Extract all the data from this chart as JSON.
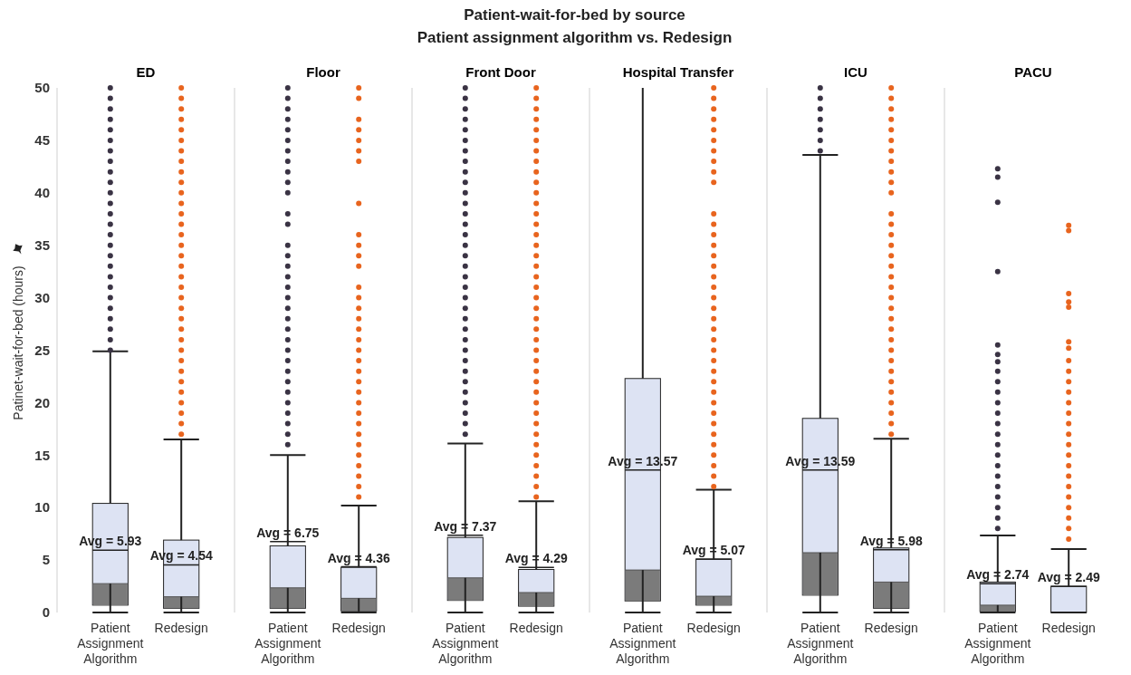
{
  "chart_data": [
    {
      "type": "box",
      "title": "ED",
      "ylabel": "Patinet-wait-for-bed (hours)",
      "annotations": [
        "Patient-wait-for-bed by source",
        "Patient assignment algorithm vs. Redesign"
      ],
      "categories": [
        "Patient Assignment Algorithm",
        "Redesign"
      ],
      "marker": "circle",
      "ylim": [
        0,
        50
      ],
      "yticks": [
        0,
        5,
        10,
        15,
        20,
        25,
        30,
        35,
        40,
        45,
        50
      ],
      "value_labels": [
        "Avg = 5.93",
        "Avg = 4.54"
      ],
      "boxes": [
        {
          "low": 0,
          "q1": 0.7,
          "median": 2.75,
          "q3": 10.4,
          "high": 24.9,
          "mean": 5.93
        },
        {
          "low": 0,
          "q1": 0.4,
          "median": 1.5,
          "q3": 6.9,
          "high": 16.5,
          "mean": 4.54
        }
      ],
      "series": [
        {
          "type": "scatter",
          "color": "#3a3344",
          "x": [
            "Patient Assignment Algorithm",
            "Patient Assignment Algorithm",
            "Patient Assignment Algorithm",
            "Patient Assignment Algorithm",
            "Patient Assignment Algorithm",
            "Patient Assignment Algorithm",
            "Patient Assignment Algorithm",
            "Patient Assignment Algorithm",
            "Patient Assignment Algorithm",
            "Patient Assignment Algorithm",
            "Patient Assignment Algorithm",
            "Patient Assignment Algorithm",
            "Patient Assignment Algorithm",
            "Patient Assignment Algorithm",
            "Patient Assignment Algorithm",
            "Patient Assignment Algorithm",
            "Patient Assignment Algorithm",
            "Patient Assignment Algorithm",
            "Patient Assignment Algorithm",
            "Patient Assignment Algorithm",
            "Patient Assignment Algorithm",
            "Patient Assignment Algorithm",
            "Patient Assignment Algorithm",
            "Patient Assignment Algorithm",
            "Patient Assignment Algorithm",
            "Patient Assignment Algorithm"
          ],
          "values": [
            25,
            26,
            27,
            28,
            29,
            30,
            31,
            32,
            33,
            34,
            35,
            36,
            37,
            38,
            39,
            40,
            41,
            42,
            43,
            44,
            45,
            46,
            47,
            48,
            49,
            50
          ]
        },
        {
          "type": "scatter",
          "color": "#e8641e",
          "x": [
            "Redesign",
            "Redesign",
            "Redesign",
            "Redesign",
            "Redesign",
            "Redesign",
            "Redesign",
            "Redesign",
            "Redesign",
            "Redesign",
            "Redesign",
            "Redesign",
            "Redesign",
            "Redesign",
            "Redesign",
            "Redesign",
            "Redesign",
            "Redesign",
            "Redesign",
            "Redesign",
            "Redesign",
            "Redesign",
            "Redesign",
            "Redesign",
            "Redesign",
            "Redesign",
            "Redesign",
            "Redesign",
            "Redesign",
            "Redesign",
            "Redesign",
            "Redesign",
            "Redesign",
            "Redesign"
          ],
          "values": [
            17,
            18,
            19,
            20,
            21,
            22,
            23,
            24,
            25,
            26,
            27,
            28,
            29,
            30,
            31,
            32,
            33,
            34,
            35,
            36,
            37,
            38,
            39,
            40,
            41,
            42,
            43,
            44,
            45,
            46,
            47,
            48,
            49,
            50
          ]
        }
      ]
    },
    {
      "type": "box",
      "title": "Floor",
      "categories": [
        "Patient Assignment Algorithm",
        "Redesign"
      ],
      "marker": "circle",
      "ylim": [
        0,
        50
      ],
      "tick_labels": "x",
      "value_labels": [
        "Avg = 6.75",
        "Avg = 4.36"
      ],
      "boxes": [
        {
          "low": 0,
          "q1": 0.4,
          "median": 2.35,
          "q3": 6.35,
          "high": 15,
          "mean": 6.75
        },
        {
          "low": 0,
          "q1": 0.15,
          "median": 1.35,
          "q3": 4.3,
          "high": 10.2,
          "mean": 4.36
        }
      ],
      "series": [
        {
          "type": "scatter",
          "color": "#3a3344",
          "x": [
            "Patient Assignment Algorithm",
            "Patient Assignment Algorithm",
            "Patient Assignment Algorithm",
            "Patient Assignment Algorithm",
            "Patient Assignment Algorithm",
            "Patient Assignment Algorithm",
            "Patient Assignment Algorithm",
            "Patient Assignment Algorithm",
            "Patient Assignment Algorithm",
            "Patient Assignment Algorithm",
            "Patient Assignment Algorithm",
            "Patient Assignment Algorithm",
            "Patient Assignment Algorithm",
            "Patient Assignment Algorithm",
            "Patient Assignment Algorithm",
            "Patient Assignment Algorithm",
            "Patient Assignment Algorithm",
            "Patient Assignment Algorithm",
            "Patient Assignment Algorithm",
            "Patient Assignment Algorithm",
            "Patient Assignment Algorithm",
            "Patient Assignment Algorithm",
            "Patient Assignment Algorithm",
            "Patient Assignment Algorithm",
            "Patient Assignment Algorithm",
            "Patient Assignment Algorithm",
            "Patient Assignment Algorithm",
            "Patient Assignment Algorithm",
            "Patient Assignment Algorithm",
            "Patient Assignment Algorithm",
            "Patient Assignment Algorithm",
            "Patient Assignment Algorithm",
            "Patient Assignment Algorithm"
          ],
          "values": [
            16,
            17,
            18,
            19,
            20,
            21,
            22,
            23,
            24,
            25,
            26,
            27,
            28,
            29,
            30,
            31,
            32,
            33,
            34,
            35,
            37,
            38,
            40,
            41,
            42,
            43,
            44,
            45,
            46,
            47,
            48,
            49,
            50
          ]
        },
        {
          "type": "scatter",
          "color": "#e8641e",
          "x": [
            "Redesign",
            "Redesign",
            "Redesign",
            "Redesign",
            "Redesign",
            "Redesign",
            "Redesign",
            "Redesign",
            "Redesign",
            "Redesign",
            "Redesign",
            "Redesign",
            "Redesign",
            "Redesign",
            "Redesign",
            "Redesign",
            "Redesign",
            "Redesign",
            "Redesign",
            "Redesign",
            "Redesign",
            "Redesign",
            "Redesign",
            "Redesign",
            "Redesign",
            "Redesign",
            "Redesign",
            "Redesign",
            "Redesign",
            "Redesign",
            "Redesign",
            "Redesign",
            "Redesign"
          ],
          "values": [
            11,
            12,
            13,
            14,
            15,
            16,
            17,
            18,
            19,
            20,
            21,
            22,
            23,
            24,
            25,
            26,
            27,
            28,
            29,
            30,
            31,
            33,
            34,
            35,
            36,
            39,
            43,
            44,
            45,
            46,
            47,
            49,
            50
          ]
        }
      ]
    },
    {
      "type": "box",
      "title": "Front Door",
      "categories": [
        "Patient Assignment Algorithm",
        "Redesign"
      ],
      "marker": "circle",
      "ylim": [
        0,
        50
      ],
      "tick_labels": "x",
      "value_labels": [
        "Avg = 7.37",
        "Avg = 4.29"
      ],
      "boxes": [
        {
          "low": 0,
          "q1": 1.15,
          "median": 3.3,
          "q3": 7.15,
          "high": 16.1,
          "mean": 7.37
        },
        {
          "low": 0,
          "q1": 0.6,
          "median": 1.9,
          "q3": 4.1,
          "high": 10.6,
          "mean": 4.29
        }
      ],
      "series": [
        {
          "type": "scatter",
          "color": "#3a3344",
          "x": [
            "Patient Assignment Algorithm",
            "Patient Assignment Algorithm",
            "Patient Assignment Algorithm",
            "Patient Assignment Algorithm",
            "Patient Assignment Algorithm",
            "Patient Assignment Algorithm",
            "Patient Assignment Algorithm",
            "Patient Assignment Algorithm",
            "Patient Assignment Algorithm",
            "Patient Assignment Algorithm",
            "Patient Assignment Algorithm",
            "Patient Assignment Algorithm",
            "Patient Assignment Algorithm",
            "Patient Assignment Algorithm",
            "Patient Assignment Algorithm",
            "Patient Assignment Algorithm",
            "Patient Assignment Algorithm",
            "Patient Assignment Algorithm",
            "Patient Assignment Algorithm",
            "Patient Assignment Algorithm",
            "Patient Assignment Algorithm",
            "Patient Assignment Algorithm",
            "Patient Assignment Algorithm",
            "Patient Assignment Algorithm",
            "Patient Assignment Algorithm",
            "Patient Assignment Algorithm",
            "Patient Assignment Algorithm",
            "Patient Assignment Algorithm",
            "Patient Assignment Algorithm",
            "Patient Assignment Algorithm",
            "Patient Assignment Algorithm",
            "Patient Assignment Algorithm",
            "Patient Assignment Algorithm",
            "Patient Assignment Algorithm"
          ],
          "values": [
            17,
            18,
            19,
            20,
            21,
            22,
            23,
            24,
            25,
            26,
            27,
            28,
            29,
            30,
            31,
            32,
            33,
            34,
            35,
            36,
            37,
            38,
            39,
            40,
            41,
            42,
            43,
            44,
            45,
            46,
            47,
            48,
            49,
            50
          ]
        },
        {
          "type": "scatter",
          "color": "#e8641e",
          "x": [
            "Redesign",
            "Redesign",
            "Redesign",
            "Redesign",
            "Redesign",
            "Redesign",
            "Redesign",
            "Redesign",
            "Redesign",
            "Redesign",
            "Redesign",
            "Redesign",
            "Redesign",
            "Redesign",
            "Redesign",
            "Redesign",
            "Redesign",
            "Redesign",
            "Redesign",
            "Redesign",
            "Redesign",
            "Redesign",
            "Redesign",
            "Redesign",
            "Redesign",
            "Redesign",
            "Redesign",
            "Redesign",
            "Redesign",
            "Redesign",
            "Redesign",
            "Redesign",
            "Redesign",
            "Redesign",
            "Redesign",
            "Redesign",
            "Redesign",
            "Redesign",
            "Redesign",
            "Redesign"
          ],
          "values": [
            11,
            12,
            13,
            14,
            15,
            16,
            17,
            18,
            19,
            20,
            21,
            22,
            23,
            24,
            25,
            26,
            27,
            28,
            29,
            30,
            31,
            32,
            33,
            34,
            35,
            36,
            37,
            38,
            39,
            40,
            41,
            42,
            43,
            44,
            45,
            46,
            47,
            48,
            49,
            50
          ]
        }
      ]
    },
    {
      "type": "box",
      "title": "Hospital Transfer",
      "categories": [
        "Patient Assignment Algorithm",
        "Redesign"
      ],
      "marker": "circle",
      "ylim": [
        0,
        50
      ],
      "tick_labels": "x",
      "value_labels": [
        "Avg = 13.57",
        "Avg = 5.07"
      ],
      "boxes": [
        {
          "low": 0,
          "q1": 1.1,
          "median": 4.05,
          "q3": 22.3,
          "high": 50,
          "mean": 13.57
        },
        {
          "low": 0,
          "q1": 0.7,
          "median": 1.55,
          "q3": 5.1,
          "high": 11.7,
          "mean": 5.07
        }
      ],
      "series": [
        {
          "type": "scatter",
          "color": "#e8641e",
          "x": [
            "Redesign",
            "Redesign",
            "Redesign",
            "Redesign",
            "Redesign",
            "Redesign",
            "Redesign",
            "Redesign",
            "Redesign",
            "Redesign",
            "Redesign",
            "Redesign",
            "Redesign",
            "Redesign",
            "Redesign",
            "Redesign",
            "Redesign",
            "Redesign",
            "Redesign",
            "Redesign",
            "Redesign",
            "Redesign",
            "Redesign",
            "Redesign",
            "Redesign",
            "Redesign",
            "Redesign",
            "Redesign",
            "Redesign",
            "Redesign",
            "Redesign",
            "Redesign",
            "Redesign",
            "Redesign",
            "Redesign",
            "Redesign",
            "Redesign"
          ],
          "values": [
            12,
            13,
            14,
            15,
            16,
            17,
            18,
            19,
            20,
            21,
            22,
            23,
            24,
            25,
            26,
            27,
            28,
            29,
            30,
            31,
            32,
            33,
            34,
            35,
            36,
            37,
            38,
            41,
            42,
            43,
            44,
            45,
            46,
            47,
            48,
            49,
            50
          ]
        }
      ]
    },
    {
      "type": "box",
      "title": "ICU",
      "categories": [
        "Patient Assignment Algorithm",
        "Redesign"
      ],
      "marker": "circle",
      "ylim": [
        0,
        50
      ],
      "tick_labels": "x",
      "value_labels": [
        "Avg = 13.59",
        "Avg = 5.98"
      ],
      "boxes": [
        {
          "low": 0,
          "q1": 1.65,
          "median": 5.7,
          "q3": 18.5,
          "high": 43.6,
          "mean": 13.59
        },
        {
          "low": 0,
          "q1": 0.4,
          "median": 2.9,
          "q3": 6.15,
          "high": 16.55,
          "mean": 5.98
        }
      ],
      "series": [
        {
          "type": "scatter",
          "color": "#3a3344",
          "x": [
            "Patient Assignment Algorithm",
            "Patient Assignment Algorithm",
            "Patient Assignment Algorithm",
            "Patient Assignment Algorithm",
            "Patient Assignment Algorithm",
            "Patient Assignment Algorithm",
            "Patient Assignment Algorithm"
          ],
          "values": [
            44,
            45,
            46,
            47,
            48,
            49,
            50
          ]
        },
        {
          "type": "scatter",
          "color": "#e8641e",
          "x": [
            "Redesign",
            "Redesign",
            "Redesign",
            "Redesign",
            "Redesign",
            "Redesign",
            "Redesign",
            "Redesign",
            "Redesign",
            "Redesign",
            "Redesign",
            "Redesign",
            "Redesign",
            "Redesign",
            "Redesign",
            "Redesign",
            "Redesign",
            "Redesign",
            "Redesign",
            "Redesign",
            "Redesign",
            "Redesign",
            "Redesign",
            "Redesign",
            "Redesign",
            "Redesign",
            "Redesign",
            "Redesign",
            "Redesign",
            "Redesign",
            "Redesign",
            "Redesign",
            "Redesign"
          ],
          "values": [
            17,
            18,
            19,
            20,
            21,
            22,
            23,
            24,
            25,
            26,
            27,
            28,
            29,
            30,
            31,
            32,
            33,
            34,
            35,
            36,
            37,
            38,
            40,
            41,
            42,
            43,
            44,
            45,
            46,
            47,
            48,
            49,
            50
          ]
        }
      ]
    },
    {
      "type": "box",
      "title": "PACU",
      "categories": [
        "Patient Assignment Algorithm",
        "Redesign"
      ],
      "marker": "circle",
      "ylim": [
        0,
        50
      ],
      "tick_labels": "x",
      "value_labels": [
        "Avg = 2.74",
        "Avg = 2.49"
      ],
      "boxes": [
        {
          "low": 0,
          "q1": 0.1,
          "median": 0.7,
          "q3": 2.9,
          "high": 7.35,
          "mean": 2.74
        },
        {
          "low": 0,
          "q1": 0,
          "median": 0,
          "q3": 2.5,
          "high": 6.05,
          "mean": 2.49
        }
      ],
      "series": [
        {
          "type": "scatter",
          "color": "#3a3344",
          "x": [
            "Patient Assignment Algorithm",
            "Patient Assignment Algorithm",
            "Patient Assignment Algorithm",
            "Patient Assignment Algorithm",
            "Patient Assignment Algorithm",
            "Patient Assignment Algorithm",
            "Patient Assignment Algorithm",
            "Patient Assignment Algorithm",
            "Patient Assignment Algorithm",
            "Patient Assignment Algorithm",
            "Patient Assignment Algorithm",
            "Patient Assignment Algorithm",
            "Patient Assignment Algorithm",
            "Patient Assignment Algorithm",
            "Patient Assignment Algorithm",
            "Patient Assignment Algorithm",
            "Patient Assignment Algorithm",
            "Patient Assignment Algorithm",
            "Patient Assignment Algorithm",
            "Patient Assignment Algorithm",
            "Patient Assignment Algorithm",
            "Patient Assignment Algorithm",
            "Patient Assignment Algorithm"
          ],
          "values": [
            8,
            9,
            10,
            11,
            12,
            13,
            14,
            15,
            16,
            17,
            18,
            19,
            20,
            21,
            22,
            23,
            23.9,
            24.6,
            25.5,
            32.5,
            39.1,
            41.5,
            42.3
          ]
        },
        {
          "type": "scatter",
          "color": "#e8641e",
          "x": [
            "Redesign",
            "Redesign",
            "Redesign",
            "Redesign",
            "Redesign",
            "Redesign",
            "Redesign",
            "Redesign",
            "Redesign",
            "Redesign",
            "Redesign",
            "Redesign",
            "Redesign",
            "Redesign",
            "Redesign",
            "Redesign",
            "Redesign",
            "Redesign",
            "Redesign",
            "Redesign",
            "Redesign",
            "Redesign",
            "Redesign",
            "Redesign",
            "Redesign"
          ],
          "values": [
            7,
            8,
            9,
            10,
            11,
            12,
            13,
            14,
            15,
            16,
            17,
            18,
            19,
            20,
            21,
            22,
            23,
            24,
            25.2,
            25.8,
            29.1,
            29.6,
            30.4,
            36.4,
            36.9
          ]
        }
      ]
    }
  ]
}
